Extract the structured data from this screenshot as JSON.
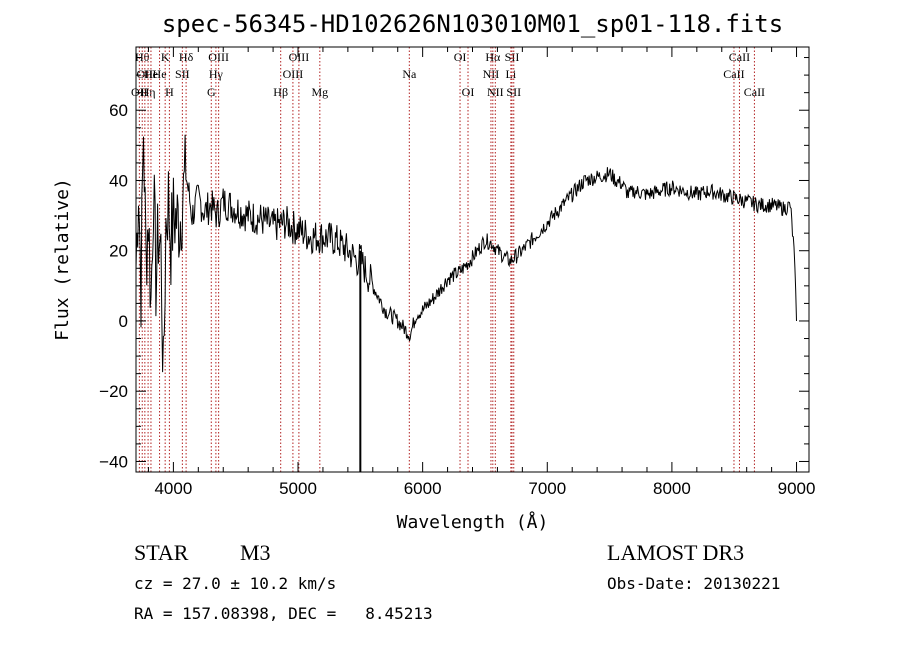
{
  "chart_data": {
    "type": "line",
    "title": "spec-56345-HD102626N103010M01_sp01-118.fits",
    "xlabel": "Wavelength (Å)",
    "ylabel": "Flux (relative)",
    "xlim": [
      3700,
      9100
    ],
    "ylim": [
      -43,
      78
    ],
    "xticks": [
      4000,
      5000,
      6000,
      7000,
      8000,
      9000
    ],
    "yticks": [
      -40,
      -20,
      0,
      20,
      40,
      60
    ],
    "grid": false,
    "series": [
      {
        "color": "#000000",
        "x": [
          3700,
          3720,
          3740,
          3760,
          3780,
          3800,
          3820,
          3840,
          3860,
          3880,
          3900,
          3920,
          3940,
          3960,
          3980,
          4000,
          4050,
          4100,
          4150,
          4200,
          4250,
          4300,
          4350,
          4400,
          4450,
          4500,
          4600,
          4700,
          4800,
          4900,
          5000,
          5100,
          5200,
          5300,
          5400,
          5480,
          5500,
          5520,
          5600,
          5700,
          5800,
          5900,
          5950,
          6000,
          6100,
          6200,
          6300,
          6400,
          6500,
          6560,
          6600,
          6700,
          6800,
          6900,
          7000,
          7100,
          7200,
          7300,
          7400,
          7500,
          7550,
          7600,
          7650,
          7700,
          7800,
          7900,
          8000,
          8100,
          8200,
          8300,
          8400,
          8500,
          8600,
          8700,
          8800,
          8900,
          8950,
          8980,
          9000
        ],
        "y": [
          15,
          40,
          10,
          55,
          18,
          30,
          5,
          38,
          12,
          25,
          20,
          -18,
          28,
          35,
          22,
          30,
          28,
          42,
          30,
          35,
          31,
          33,
          30,
          34,
          33,
          32,
          30,
          29,
          27,
          28,
          26,
          24,
          24,
          23,
          20,
          17,
          18,
          16,
          10,
          3,
          0,
          -4,
          2,
          3,
          7,
          12,
          14,
          18,
          23,
          22,
          20,
          17,
          20,
          24,
          28,
          32,
          36,
          40,
          41,
          42,
          40,
          39,
          36,
          37,
          36,
          37,
          38,
          37,
          36,
          37,
          36,
          35,
          34,
          33,
          33,
          32,
          33,
          20,
          0
        ]
      }
    ],
    "spikes": [
      {
        "x": 5500,
        "y": -43
      }
    ],
    "line_markers": [
      {
        "x": 3727,
        "labels": [
          "OII"
        ],
        "row": 3
      },
      {
        "x": 3750,
        "labels": [
          "Hθ"
        ],
        "row": 1
      },
      {
        "x": 3771,
        "labels": [
          "OII"
        ],
        "row": 2
      },
      {
        "x": 3797,
        "labels": [
          "Hη"
        ],
        "row": 3
      },
      {
        "x": 3820,
        "labels": [
          "He"
        ],
        "row": 2
      },
      {
        "x": 3889,
        "labels": [
          "He"
        ],
        "row": 2
      },
      {
        "x": 3934,
        "labels": [
          "K"
        ],
        "row": 1
      },
      {
        "x": 3968,
        "labels": [
          "H"
        ],
        "row": 3
      },
      {
        "x": 4072,
        "labels": [
          "SII"
        ],
        "row": 2
      },
      {
        "x": 4102,
        "labels": [
          "Hδ"
        ],
        "row": 1
      },
      {
        "x": 4304,
        "labels": [
          "G"
        ],
        "row": 3
      },
      {
        "x": 4341,
        "labels": [
          "Hγ"
        ],
        "row": 2
      },
      {
        "x": 4363,
        "labels": [
          "OIII"
        ],
        "row": 1
      },
      {
        "x": 4861,
        "labels": [
          "Hβ"
        ],
        "row": 3
      },
      {
        "x": 4959,
        "labels": [
          "OIII"
        ],
        "row": 2
      },
      {
        "x": 5007,
        "labels": [
          "OIII"
        ],
        "row": 1
      },
      {
        "x": 5175,
        "labels": [
          "Mg"
        ],
        "row": 3
      },
      {
        "x": 5893,
        "labels": [
          "Na"
        ],
        "row": 2
      },
      {
        "x": 6300,
        "labels": [
          "OI"
        ],
        "row": 1
      },
      {
        "x": 6364,
        "labels": [
          "OI"
        ],
        "row": 3
      },
      {
        "x": 6548,
        "labels": [
          "NII"
        ],
        "row": 2
      },
      {
        "x": 6563,
        "labels": [
          "Hα"
        ],
        "row": 1
      },
      {
        "x": 6583,
        "labels": [
          "NII"
        ],
        "row": 3
      },
      {
        "x": 6708,
        "labels": [
          "Li"
        ],
        "row": 2
      },
      {
        "x": 6717,
        "labels": [
          "SII"
        ],
        "row": 1
      },
      {
        "x": 6731,
        "labels": [
          "SII"
        ],
        "row": 3
      },
      {
        "x": 8498,
        "labels": [
          "CaII"
        ],
        "row": 2
      },
      {
        "x": 8542,
        "labels": [
          "CaII"
        ],
        "row": 1
      },
      {
        "x": 8662,
        "labels": [
          "CaII"
        ],
        "row": 3
      }
    ]
  },
  "info": {
    "object_class": "STAR",
    "subclass": "M3",
    "survey": "LAMOST DR3",
    "redshift": "cz = 27.0 ± 10.2 km/s",
    "obs_date": "Obs-Date: 20130221",
    "coords": "RA = 157.08398, DEC =   8.45213"
  }
}
